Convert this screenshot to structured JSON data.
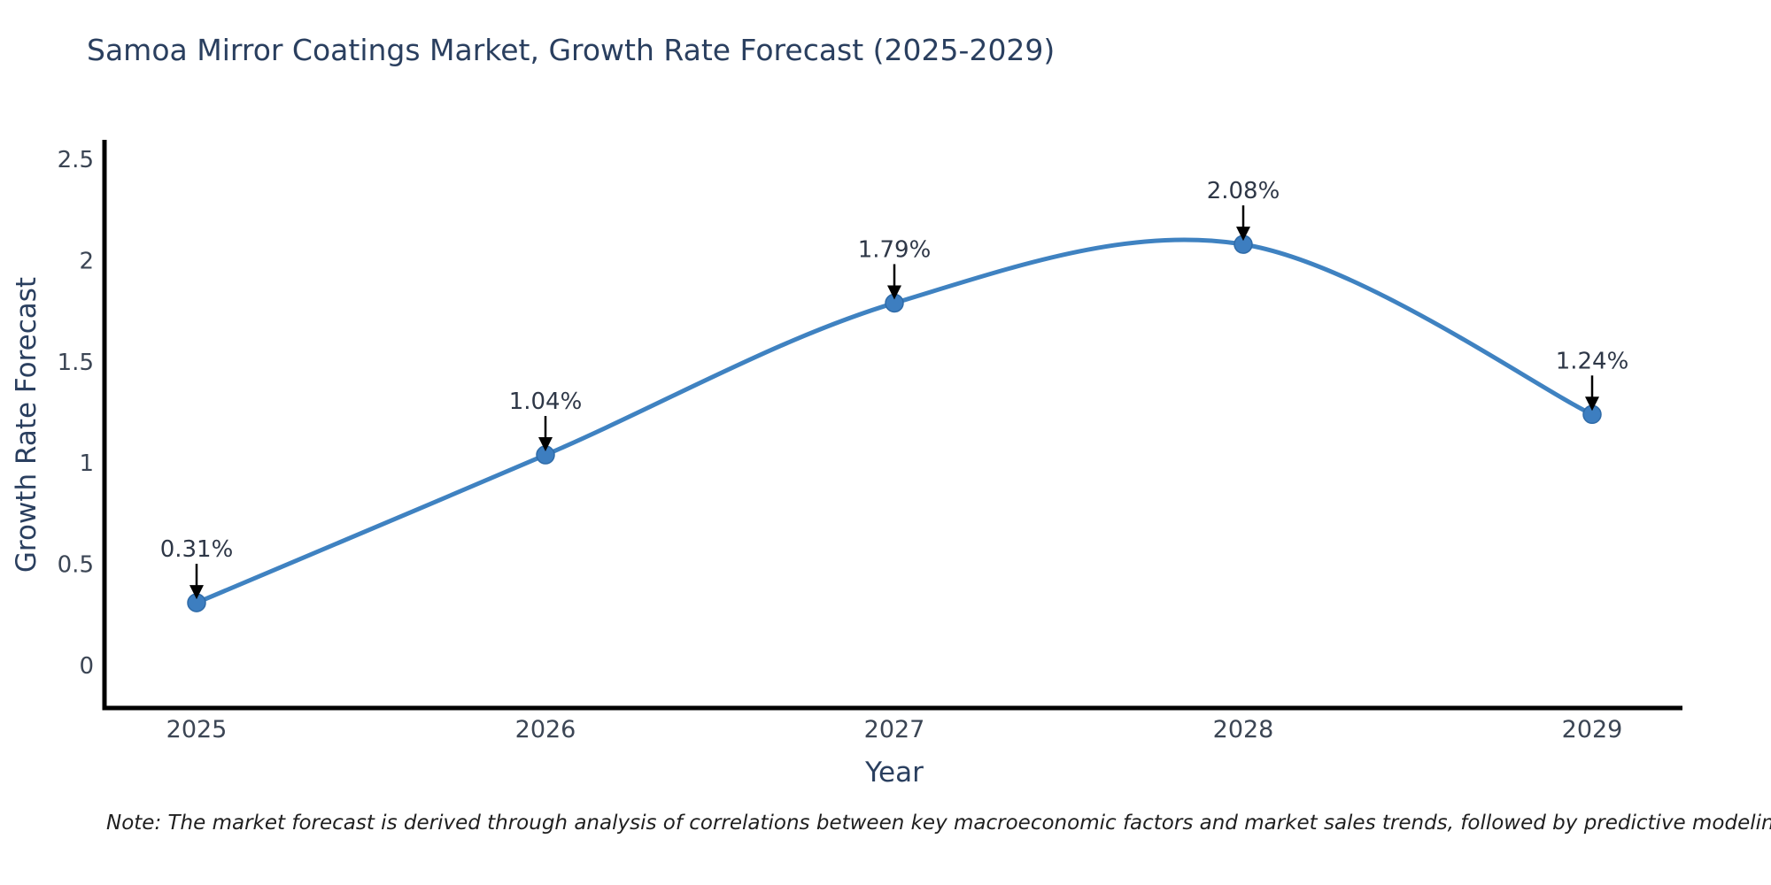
{
  "chart_data": {
    "type": "line",
    "title": "Samoa Mirror Coatings Market, Growth Rate Forecast (2025-2029)",
    "x": [
      2025,
      2026,
      2027,
      2028,
      2029
    ],
    "x_labels": [
      "2025",
      "2026",
      "2027",
      "2028",
      "2029"
    ],
    "series": [
      {
        "name": "Growth Rate Forecast",
        "values": [
          0.31,
          1.04,
          1.79,
          2.08,
          1.24
        ]
      }
    ],
    "point_labels": [
      "0.31%",
      "1.04%",
      "1.79%",
      "2.08%",
      "1.24%"
    ],
    "xlabel": "Year",
    "ylabel": "Growth Rate Forecast",
    "ytick_values": [
      0,
      0.5,
      1,
      1.5,
      2,
      2.5
    ],
    "ytick_labels": [
      "0",
      "0.5",
      "1",
      "1.5",
      "2",
      "2.5"
    ],
    "xlim": [
      2024.74,
      2029.26
    ],
    "ylim": [
      -0.22,
      2.6
    ],
    "grid": false,
    "legend": false,
    "line_shape": "spline",
    "annotations_have_arrows": true
  },
  "note": "Note: The market forecast is derived through analysis of correlations between key macroeconomic factors and market sales trends, followed by predictive modeling to project future sales",
  "colors": {
    "background": "#ffffff",
    "line": "#3f82c1",
    "marker_fill": "#3d7ec0",
    "marker_edge": "#2f6ba8",
    "axis_line": "#000000",
    "title_text": "#2a3f5f",
    "tick_text": "#3b4554",
    "annotation_text": "#2e3747",
    "arrow": "#000000",
    "note_text": "#1f1f1f"
  }
}
